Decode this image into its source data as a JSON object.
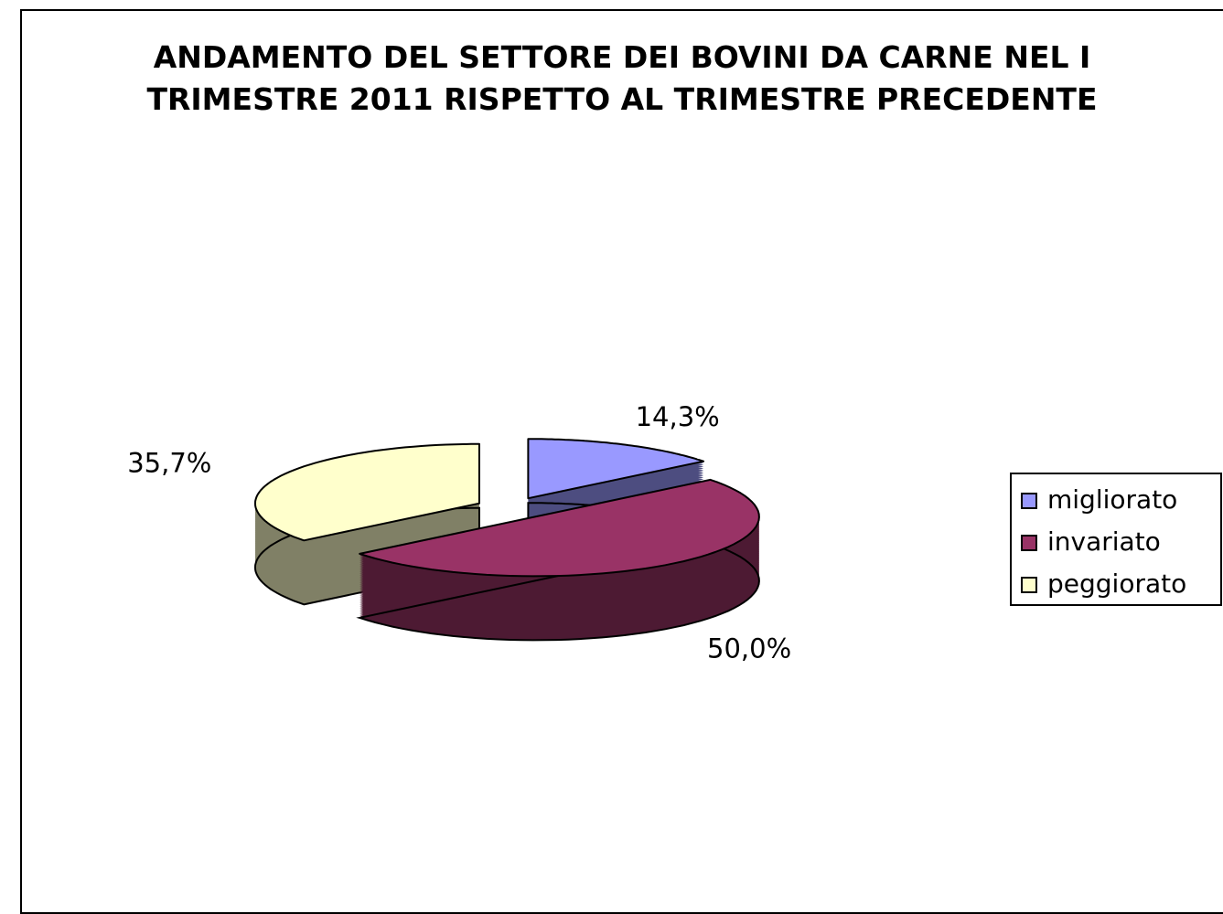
{
  "chart_data": {
    "type": "pie3d",
    "title": "ANDAMENTO DEL SETTORE DEI BOVINI DA CARNE NEL I TRIMESTRE 2011 RISPETTO AL TRIMESTRE PRECEDENTE",
    "categories": [
      "migliorato",
      "invariato",
      "peggiorato"
    ],
    "values": [
      14.3,
      50.0,
      35.7
    ],
    "value_labels": [
      "14,3%",
      "50,0%",
      "35,7%"
    ],
    "colors": [
      "#9999FF",
      "#993366",
      "#FFFFCC"
    ],
    "legend": "right"
  }
}
